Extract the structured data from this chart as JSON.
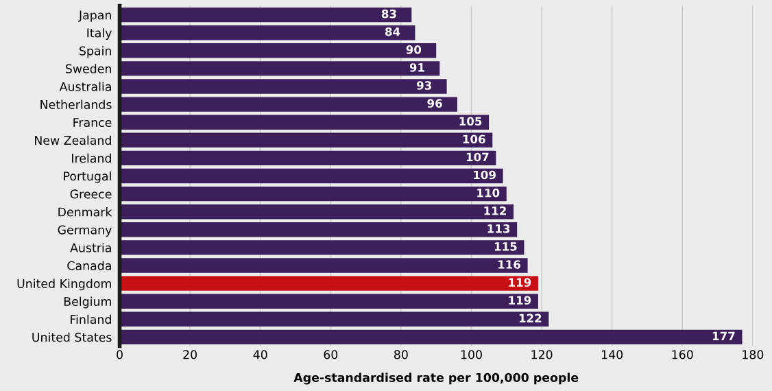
{
  "chart_data": {
    "type": "bar",
    "orientation": "horizontal",
    "categories": [
      "Japan",
      "Italy",
      "Spain",
      "Sweden",
      "Australia",
      "Netherlands",
      "France",
      "New Zealand",
      "Ireland",
      "Portugal",
      "Greece",
      "Denmark",
      "Germany",
      "Austria",
      "Canada",
      "United Kingdom",
      "Belgium",
      "Finland",
      "United States"
    ],
    "values": [
      83,
      84,
      90,
      91,
      93,
      96,
      105,
      106,
      107,
      109,
      110,
      112,
      113,
      115,
      116,
      119,
      119,
      122,
      177
    ],
    "colors": [
      "#3d1f5c",
      "#3d1f5c",
      "#3d1f5c",
      "#3d1f5c",
      "#3d1f5c",
      "#3d1f5c",
      "#3d1f5c",
      "#3d1f5c",
      "#3d1f5c",
      "#3d1f5c",
      "#3d1f5c",
      "#3d1f5c",
      "#3d1f5c",
      "#3d1f5c",
      "#3d1f5c",
      "#c80f14",
      "#3d1f5c",
      "#3d1f5c",
      "#3d1f5c"
    ],
    "xlim": [
      0,
      180
    ],
    "xticks": [
      0,
      20,
      40,
      60,
      80,
      100,
      120,
      140,
      160,
      180
    ],
    "xlabel": "Age-standardised rate per 100,000 people",
    "grid": "x",
    "data_labels": true,
    "legend": false
  }
}
